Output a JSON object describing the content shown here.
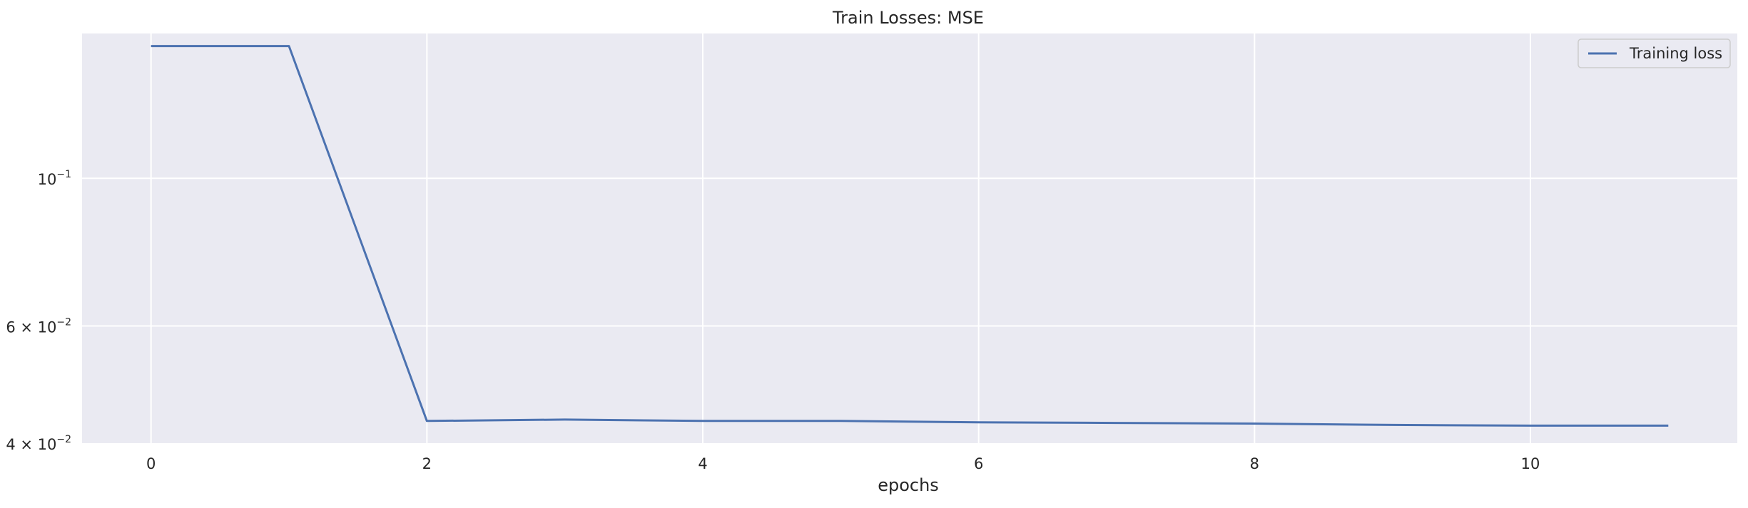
{
  "chart_data": {
    "type": "line",
    "title": "Train Losses:  MSE",
    "xlabel": "epochs",
    "ylabel": "",
    "yscale": "log",
    "xlim": [
      -0.5,
      11.5
    ],
    "ylim": [
      0.04,
      0.165
    ],
    "grid": true,
    "legend_position": "top-right",
    "x_ticks": [
      0,
      2,
      4,
      6,
      8,
      10
    ],
    "x_tick_labels": [
      "0",
      "2",
      "4",
      "6",
      "8",
      "10"
    ],
    "y_ticks": [
      {
        "value": 0.1,
        "mantissa": "",
        "base": "10",
        "exponent": "−1"
      },
      {
        "value": 0.06,
        "mantissa": "6 × ",
        "base": "10",
        "exponent": "−2"
      },
      {
        "value": 0.04,
        "mantissa": "4 × ",
        "base": "10",
        "exponent": "−2"
      }
    ],
    "series": [
      {
        "name": "Training loss",
        "color": "#4c72b0",
        "x": [
          0,
          1,
          2,
          3,
          4,
          5,
          6,
          7,
          8,
          9,
          10,
          11
        ],
        "y": [
          0.158,
          0.158,
          0.0432,
          0.0434,
          0.0432,
          0.0432,
          0.043,
          0.0429,
          0.0428,
          0.0426,
          0.0425,
          0.0425
        ]
      }
    ]
  }
}
